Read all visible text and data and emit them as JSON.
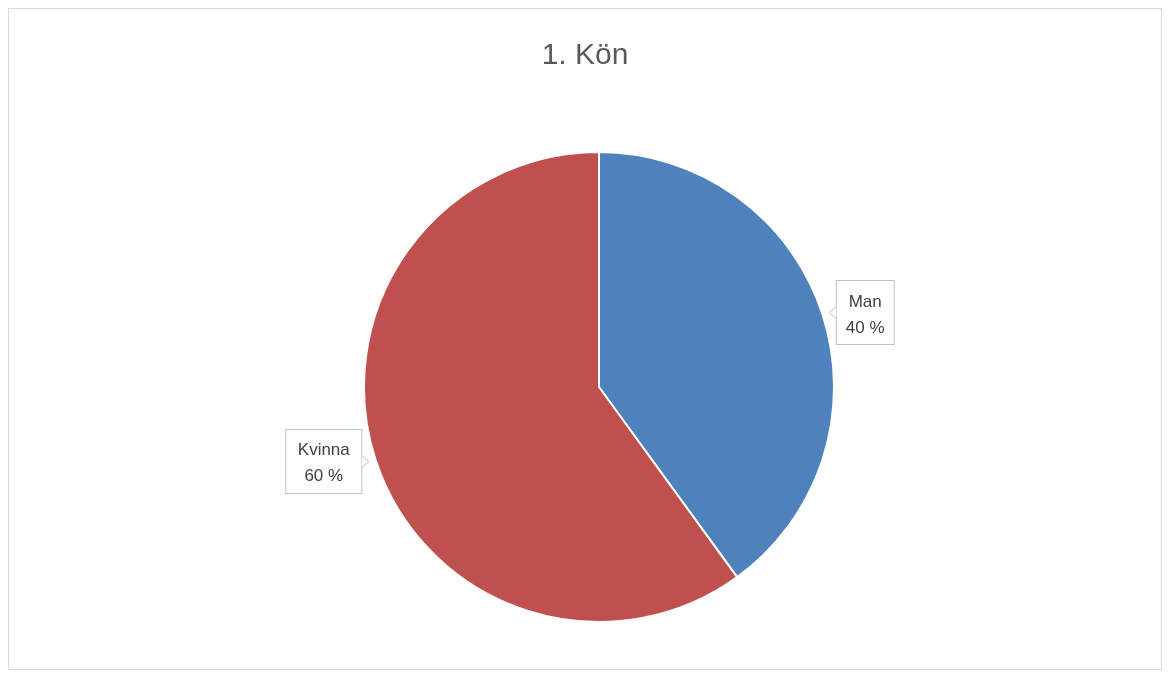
{
  "chart_data": {
    "type": "pie",
    "title": "1. Kön",
    "categories": [
      "Man",
      "Kvinna"
    ],
    "values": [
      40,
      60
    ],
    "colors": [
      "#4f81bd",
      "#c0504d"
    ],
    "value_labels": [
      "40 %",
      "60 %"
    ]
  }
}
